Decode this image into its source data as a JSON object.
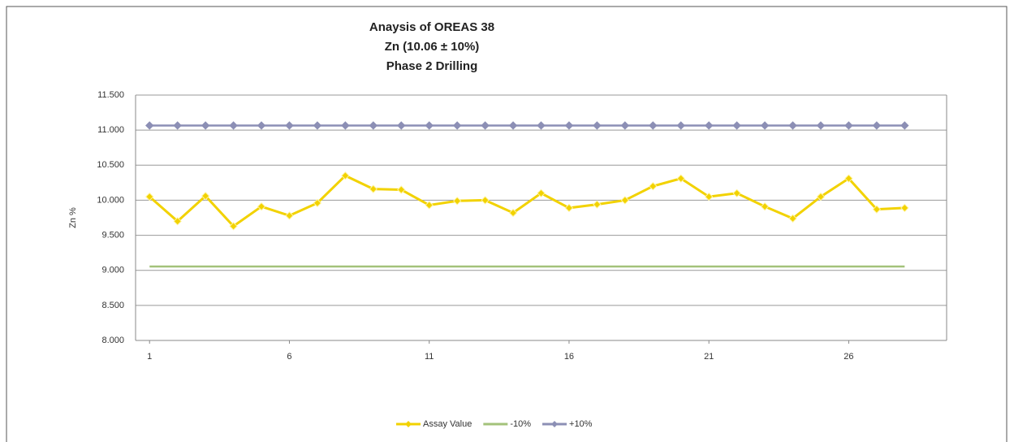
{
  "chart_data": {
    "type": "line",
    "title": [
      "Anaysis of OREAS 38",
      "Zn (10.06 ±  10%)",
      "Phase 2 Drilling"
    ],
    "y_label": "Zn %",
    "x": [
      1,
      2,
      3,
      4,
      5,
      6,
      7,
      8,
      9,
      10,
      11,
      12,
      13,
      14,
      15,
      16,
      17,
      18,
      19,
      20,
      21,
      22,
      23,
      24,
      25,
      26,
      27,
      28
    ],
    "xlim": [
      0.5,
      29.5
    ],
    "xticks": [
      1,
      6,
      11,
      16,
      21,
      26
    ],
    "ylim": [
      8,
      11.5
    ],
    "yticks": [
      {
        "value": 8,
        "label": "8.000"
      },
      {
        "value": 8.5,
        "label": "8.500"
      },
      {
        "value": 9,
        "label": "9.000"
      },
      {
        "value": 9.5,
        "label": "9.500"
      },
      {
        "value": 10,
        "label": "10.000"
      },
      {
        "value": 10.5,
        "label": "10.500"
      },
      {
        "value": 11,
        "label": "11.000"
      },
      {
        "value": 11.5,
        "label": "11.500"
      }
    ],
    "grid": true,
    "legend": "bottom",
    "series": [
      {
        "name": "Assay Value",
        "color": "#f2d200",
        "marker": "diamond",
        "values": [
          10.05,
          9.7,
          10.06,
          9.63,
          9.91,
          9.78,
          9.96,
          10.35,
          10.16,
          10.15,
          9.93,
          9.99,
          10.0,
          9.82,
          10.1,
          9.89,
          9.94,
          10.0,
          10.2,
          10.31,
          10.05,
          10.1,
          9.91,
          9.74,
          10.05,
          10.31,
          9.87,
          9.89
        ]
      },
      {
        "name": "-10%",
        "color": "#a3c27a",
        "marker": "none",
        "values": [
          9.054,
          9.054,
          9.054,
          9.054,
          9.054,
          9.054,
          9.054,
          9.054,
          9.054,
          9.054,
          9.054,
          9.054,
          9.054,
          9.054,
          9.054,
          9.054,
          9.054,
          9.054,
          9.054,
          9.054,
          9.054,
          9.054,
          9.054,
          9.054,
          9.054,
          9.054,
          9.054,
          9.054
        ]
      },
      {
        "name": "+10%",
        "color": "#8c8fb5",
        "marker": "diamond",
        "values": [
          11.066,
          11.066,
          11.066,
          11.066,
          11.066,
          11.066,
          11.066,
          11.066,
          11.066,
          11.066,
          11.066,
          11.066,
          11.066,
          11.066,
          11.066,
          11.066,
          11.066,
          11.066,
          11.066,
          11.066,
          11.066,
          11.066,
          11.066,
          11.066,
          11.066,
          11.066,
          11.066,
          11.066
        ]
      }
    ]
  }
}
